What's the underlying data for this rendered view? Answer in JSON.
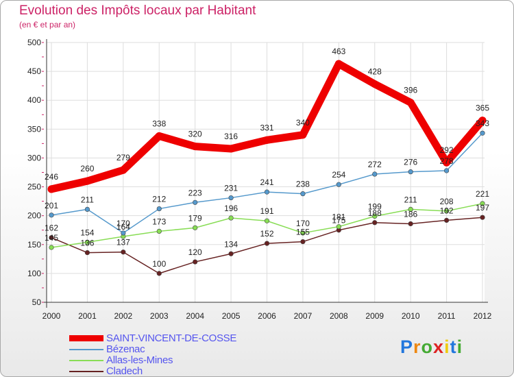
{
  "header": {
    "title": "Evolution des Impôts locaux par Habitant",
    "subtitle": "(en € et par an)"
  },
  "chart_data": {
    "type": "line",
    "title": "Evolution des Impôts locaux par Habitant",
    "subtitle": "(en € et par an)",
    "xlabel": "",
    "ylabel": "",
    "categories": [
      "2000",
      "2001",
      "2002",
      "2003",
      "2004",
      "2005",
      "2006",
      "2007",
      "2008",
      "2009",
      "2010",
      "2011",
      "2012"
    ],
    "ylim": [
      50,
      500
    ],
    "yticks": [
      50,
      100,
      150,
      200,
      250,
      300,
      350,
      400,
      450,
      500
    ],
    "grid": true,
    "legend_position": "bottom-left",
    "series": [
      {
        "name": "SAINT-VINCENT-DE-COSSE",
        "color": "#ee0000",
        "values": [
          246,
          260,
          279,
          338,
          320,
          316,
          331,
          340,
          463,
          428,
          396,
          292,
          365
        ]
      },
      {
        "name": "Bézenac",
        "color": "#5599cc",
        "values": [
          201,
          211,
          170,
          212,
          223,
          231,
          241,
          238,
          254,
          272,
          276,
          278,
          343
        ]
      },
      {
        "name": "Allas-les-Mines",
        "color": "#88dd55",
        "values": [
          145,
          154,
          164,
          173,
          179,
          196,
          191,
          170,
          181,
          199,
          211,
          208,
          221
        ]
      },
      {
        "name": "Cladech",
        "color": "#662222",
        "values": [
          162,
          136,
          137,
          100,
          120,
          134,
          152,
          155,
          175,
          188,
          186,
          192,
          197
        ]
      }
    ],
    "data_labels": [
      {
        "name": "SAINT-VINCENT-DE-COSSE",
        "labels": [
          "246",
          "260",
          "279",
          "338",
          "320",
          "316",
          "331",
          "340",
          "463",
          "428",
          "396",
          "292",
          "365"
        ]
      },
      {
        "name": "Bézenac",
        "labels": [
          "201",
          "211",
          "170",
          "212",
          "223",
          "231",
          "241",
          "238",
          "254",
          "272",
          "276",
          "278",
          "343"
        ]
      },
      {
        "name": "Allas-les-Mines",
        "labels": [
          "145",
          "154",
          "164",
          "173",
          "179",
          "196",
          "191",
          "170",
          "181",
          "199",
          "211",
          "208",
          "221"
        ]
      },
      {
        "name": "Cladech",
        "labels": [
          "162",
          "136",
          "137",
          "100",
          "120",
          "134",
          "152",
          "155",
          "175",
          "188",
          "186",
          "192",
          "197"
        ]
      }
    ]
  },
  "legend": {
    "items": [
      {
        "label": "SAINT-VINCENT-DE-COSSE",
        "color": "#ee0000"
      },
      {
        "label": "Bézenac",
        "color": "#5599cc"
      },
      {
        "label": "Allas-les-Mines",
        "color": "#88dd55"
      },
      {
        "label": "Cladech",
        "color": "#662222"
      }
    ]
  },
  "logo": {
    "letters": [
      "P",
      "r",
      "o",
      "x",
      "i",
      "t",
      "i"
    ],
    "colors": [
      "#2277dd",
      "#ee8811",
      "#44aa33",
      "#dd2222",
      "#eecc11",
      "#2277dd",
      "#44aa33"
    ]
  }
}
